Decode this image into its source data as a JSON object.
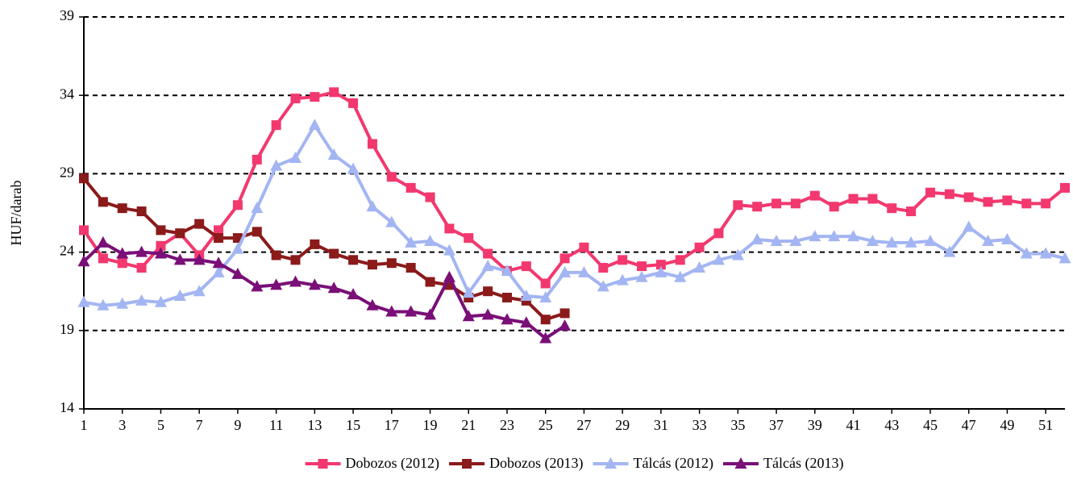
{
  "chart_data": {
    "type": "line",
    "y_label": "HUF/darab",
    "x": [
      1,
      2,
      3,
      4,
      5,
      6,
      7,
      8,
      9,
      10,
      11,
      12,
      13,
      14,
      15,
      16,
      17,
      18,
      19,
      20,
      21,
      22,
      23,
      24,
      25,
      26,
      27,
      28,
      29,
      30,
      31,
      32,
      33,
      34,
      35,
      36,
      37,
      38,
      39,
      40,
      41,
      42,
      43,
      44,
      45,
      46,
      47,
      48,
      49,
      50,
      51,
      52
    ],
    "xlim": [
      1,
      52
    ],
    "xticks": [
      1,
      3,
      5,
      7,
      9,
      11,
      13,
      15,
      17,
      19,
      21,
      23,
      25,
      27,
      29,
      31,
      33,
      35,
      37,
      39,
      41,
      43,
      45,
      47,
      49,
      51
    ],
    "ylim": [
      14,
      39
    ],
    "yticks": [
      14,
      19,
      24,
      29,
      34,
      39
    ],
    "grid": true,
    "legend": "bottom",
    "series": [
      {
        "name": "Dobozos (2012)",
        "color": "#f2386e",
        "marker": "square",
        "values": [
          25.4,
          23.6,
          23.3,
          23.0,
          24.4,
          25.2,
          23.8,
          25.4,
          27.0,
          29.9,
          32.1,
          33.8,
          33.9,
          34.2,
          33.5,
          30.9,
          28.8,
          28.1,
          27.5,
          25.5,
          24.9,
          23.9,
          22.8,
          23.1,
          22.0,
          23.6,
          24.3,
          23.0,
          23.5,
          23.1,
          23.2,
          23.5,
          24.3,
          25.2,
          27.0,
          26.9,
          27.1,
          27.1,
          27.6,
          26.9,
          27.4,
          27.4,
          26.8,
          26.6,
          27.8,
          27.7,
          27.5,
          27.2,
          27.3,
          27.1,
          27.1,
          28.1
        ]
      },
      {
        "name": "Dobozos (2013)",
        "color": "#8b1a1a",
        "marker": "square",
        "values": [
          28.7,
          27.2,
          26.8,
          26.6,
          25.4,
          25.2,
          25.8,
          24.9,
          24.9,
          25.3,
          23.8,
          23.5,
          24.5,
          23.9,
          23.5,
          23.2,
          23.3,
          23.0,
          22.1,
          21.9,
          21.1,
          21.5,
          21.1,
          20.9,
          19.7,
          20.1,
          null,
          null,
          null,
          null,
          null,
          null,
          null,
          null,
          null,
          null,
          null,
          null,
          null,
          null,
          null,
          null,
          null,
          null,
          null,
          null,
          null,
          null,
          null,
          null,
          null,
          null
        ]
      },
      {
        "name": "Tálcás (2012)",
        "color": "#a3b5f2",
        "marker": "triangle",
        "values": [
          20.8,
          20.6,
          20.7,
          20.9,
          20.8,
          21.2,
          21.5,
          22.7,
          24.2,
          26.8,
          29.5,
          30.0,
          32.1,
          30.2,
          29.3,
          26.9,
          25.9,
          24.6,
          24.7,
          24.1,
          21.4,
          23.1,
          22.8,
          21.2,
          21.1,
          22.7,
          22.7,
          21.8,
          22.2,
          22.4,
          22.7,
          22.4,
          23.0,
          23.5,
          23.8,
          24.8,
          24.7,
          24.7,
          25.0,
          25.0,
          25.0,
          24.7,
          24.6,
          24.6,
          24.7,
          24.0,
          25.6,
          24.7,
          24.8,
          23.9,
          23.9,
          23.6
        ]
      },
      {
        "name": "Tálcás (2013)",
        "color": "#7a0f78",
        "marker": "triangle",
        "values": [
          23.4,
          24.6,
          23.9,
          24.0,
          23.9,
          23.5,
          23.5,
          23.3,
          22.6,
          21.8,
          21.9,
          22.1,
          21.9,
          21.7,
          21.3,
          20.6,
          20.2,
          20.2,
          20.0,
          22.4,
          19.9,
          20.0,
          19.7,
          19.5,
          18.5,
          19.3,
          null,
          null,
          null,
          null,
          null,
          null,
          null,
          null,
          null,
          null,
          null,
          null,
          null,
          null,
          null,
          null,
          null,
          null,
          null,
          null,
          null,
          null,
          null,
          null,
          null,
          null
        ]
      }
    ]
  }
}
